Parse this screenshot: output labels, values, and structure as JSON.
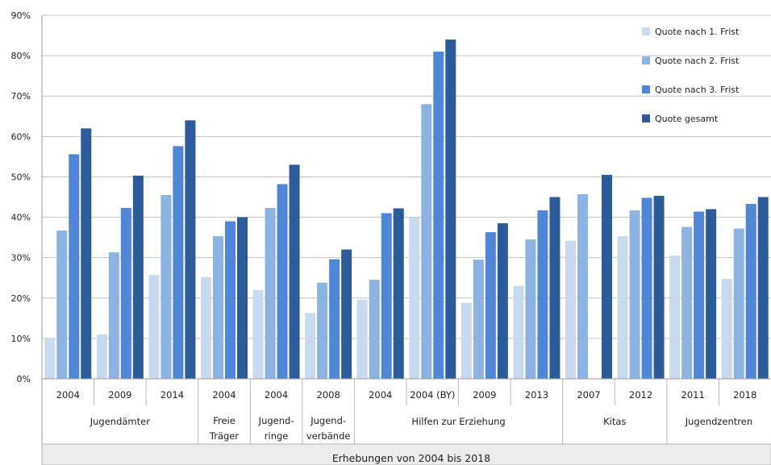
{
  "chart_data": {
    "type": "bar",
    "title": "",
    "xlabel": "Erhebungen von 2004 bis 2018",
    "ylabel": "",
    "ylim": [
      0,
      90
    ],
    "yticks": [
      "0%",
      "10%",
      "20%",
      "30%",
      "40%",
      "50%",
      "60%",
      "70%",
      "80%",
      "90%"
    ],
    "grid": true,
    "legend_position": "top-right",
    "categories": [
      "2004",
      "2009",
      "2014",
      "2004",
      "2004",
      "2008",
      "2004",
      "2004 (BY)",
      "2009",
      "2013",
      "2007",
      "2012",
      "2011",
      "2018"
    ],
    "groups": [
      {
        "label": [
          "Jugendämter"
        ],
        "count": 3
      },
      {
        "label": [
          "Freie",
          "Träger"
        ],
        "count": 1
      },
      {
        "label": [
          "Jugend-",
          "ringe"
        ],
        "count": 1
      },
      {
        "label": [
          "Jugend-",
          "verbände"
        ],
        "count": 1
      },
      {
        "label": [
          "Hilfen zur Erziehung"
        ],
        "count": 4
      },
      {
        "label": [
          "Kitas"
        ],
        "count": 2
      },
      {
        "label": [
          "Jugendzentren"
        ],
        "count": 2
      }
    ],
    "series": [
      {
        "name": "Quote nach 1. Frist",
        "color": "#c9d9ee",
        "values": [
          10,
          11,
          25.7,
          25.2,
          22,
          16.3,
          19.6,
          40,
          18.8,
          23,
          34.2,
          35.3,
          30.5,
          24.7
        ]
      },
      {
        "name": "Quote nach 2. Frist",
        "color": "#8db3e2",
        "values": [
          36.7,
          31.3,
          45.5,
          35.3,
          42.3,
          23.8,
          24.5,
          68,
          29.5,
          34.5,
          45.7,
          41.7,
          37.6,
          37.2
        ]
      },
      {
        "name": "Quote nach 3. Frist",
        "color": "#4f86d6",
        "values": [
          55.6,
          42.3,
          57.6,
          39,
          48.2,
          29.6,
          41,
          81,
          36.3,
          41.7,
          null,
          44.8,
          41.4,
          43.3
        ]
      },
      {
        "name": "Quote gesamt",
        "color": "#2c5b99",
        "values": [
          62,
          50.3,
          64,
          40,
          53,
          32,
          42.2,
          84,
          38.5,
          45,
          50.5,
          45.3,
          42,
          45
        ]
      }
    ]
  }
}
